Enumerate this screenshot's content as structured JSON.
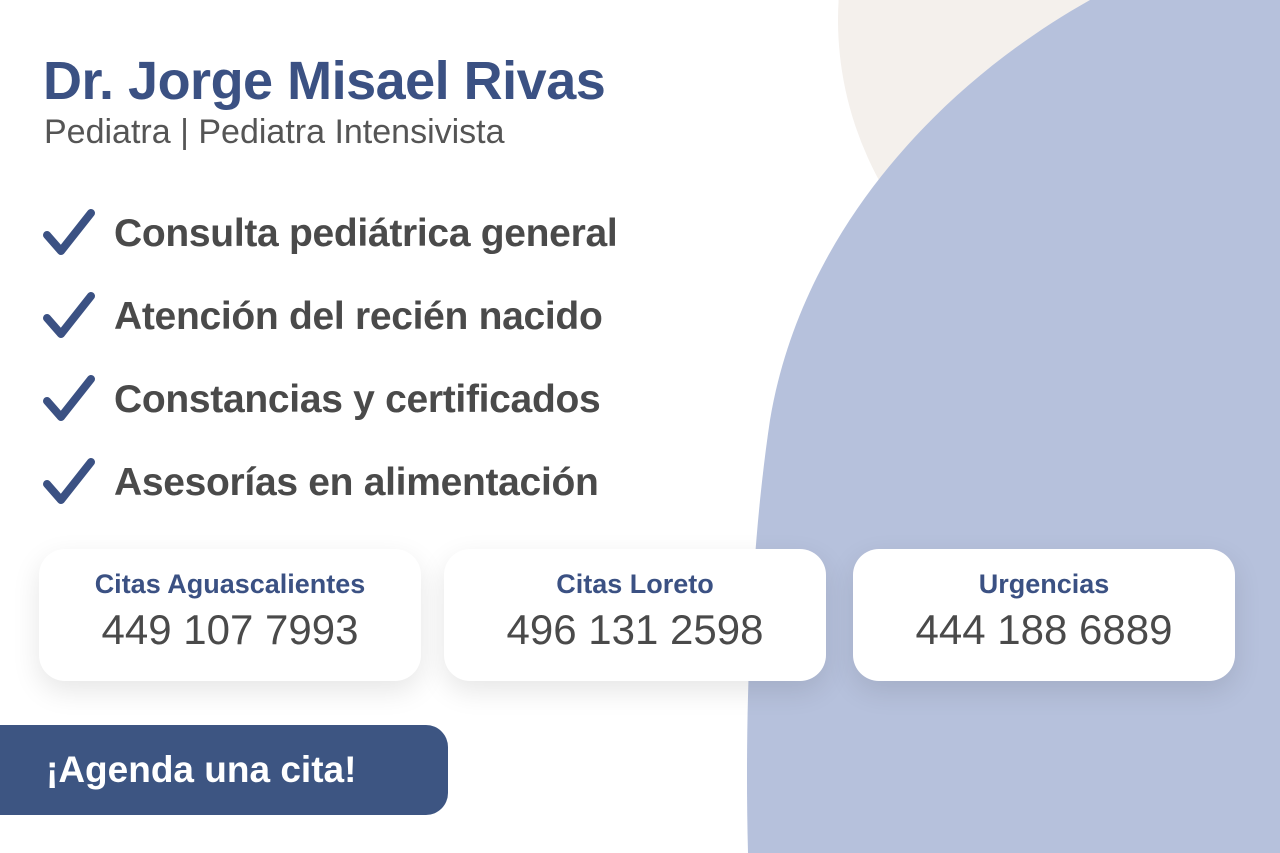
{
  "header": {
    "title": "Dr. Jorge Misael Rivas",
    "subtitle": "Pediatra | Pediatra Intensivista"
  },
  "services": [
    {
      "label": "Consulta pediátrica general",
      "icon": "checkmark-icon"
    },
    {
      "label": "Atención del recién nacido",
      "icon": "checkmark-icon"
    },
    {
      "label": "Constancias y certificados",
      "icon": "checkmark-icon"
    },
    {
      "label": "Asesorías en alimentación",
      "icon": "checkmark-icon"
    }
  ],
  "contacts": [
    {
      "label": "Citas Aguascalientes",
      "phone": "449 107 7993"
    },
    {
      "label": "Citas Loreto",
      "phone": "496 131 2598"
    },
    {
      "label": "Urgencias",
      "phone": "444 188 6889"
    }
  ],
  "cta": {
    "label": "¡Agenda una cita!"
  },
  "colors": {
    "brand": "#3b5183",
    "accent_blob": "#b6c1dc",
    "beige_blob": "#f4f0ec",
    "text": "#4a4a4a"
  }
}
